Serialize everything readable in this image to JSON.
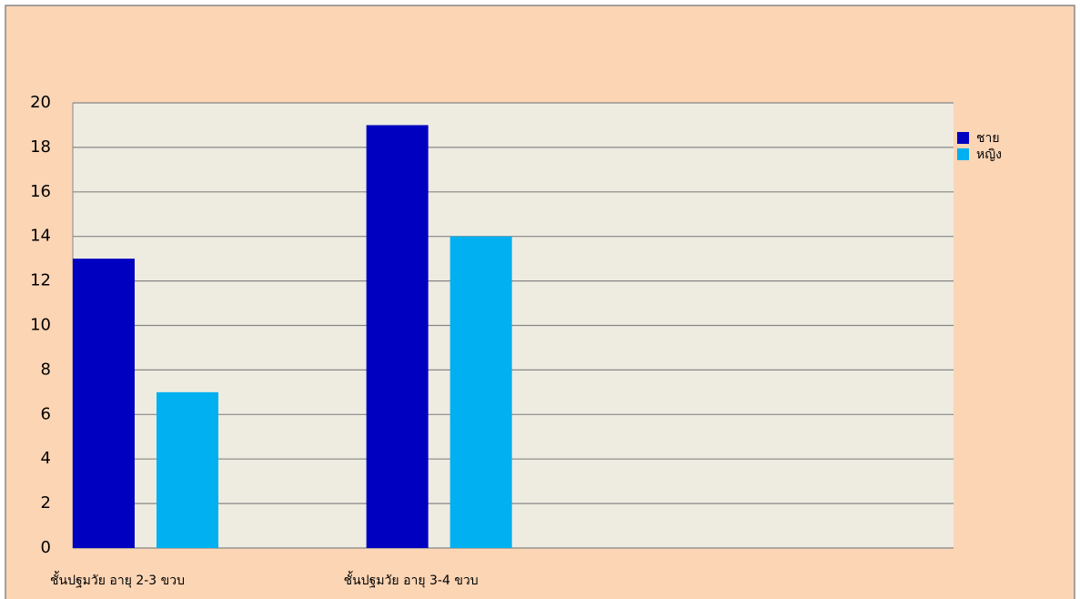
{
  "chart_data": {
    "type": "bar",
    "categories": [
      "ชั้นปฐมวัย  อายุ 2-3 ขวบ",
      "ชั้นปฐมวัย  อายุ 3-4 ขวบ",
      null
    ],
    "series": [
      {
        "name": "ชาย",
        "color": "#0000c0",
        "values": [
          13,
          19,
          null
        ]
      },
      {
        "name": "หญิง",
        "color": "#00b0f0",
        "values": [
          7,
          14,
          null
        ]
      }
    ],
    "ylim": [
      0,
      20
    ],
    "yticks": [
      0,
      2,
      4,
      6,
      8,
      10,
      12,
      14,
      16,
      18,
      20
    ],
    "grid": true,
    "legend": "right"
  }
}
